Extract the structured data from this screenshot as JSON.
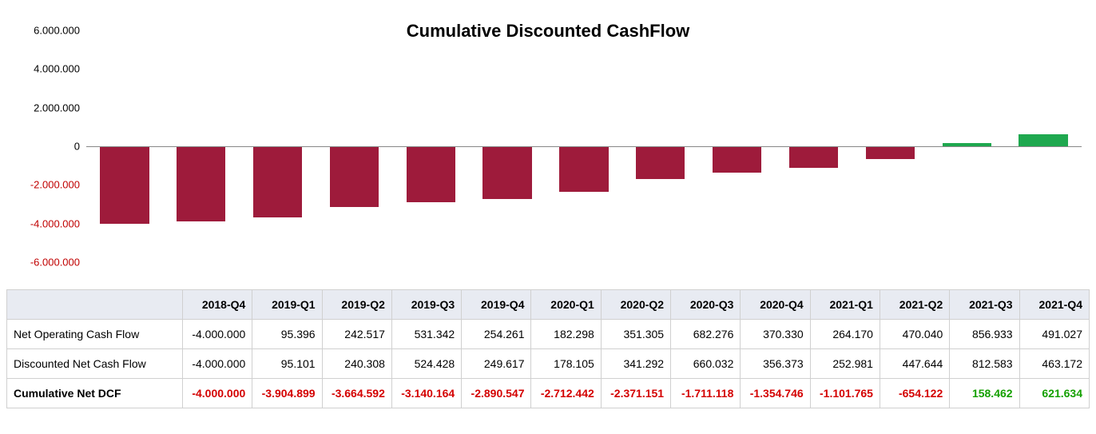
{
  "chart": {
    "type": "bar",
    "title": "Cumulative Discounted CashFlow",
    "title_fontsize": 22,
    "title_weight": "900",
    "background_color": "#ffffff",
    "y_axis": {
      "min": -6000000,
      "max": 6000000,
      "step": 2000000,
      "tick_labels": [
        "6.000.000",
        "4.000.000",
        "2.000.000",
        "0",
        "-2.000.000",
        "-4.000.000",
        "-6.000.000"
      ],
      "tick_fontsize": 13,
      "zero_line_color": "#888888",
      "positive_label_color": "#000000",
      "negative_label_color": "#c00000"
    },
    "categories": [
      "2018-Q4",
      "2019-Q1",
      "2019-Q2",
      "2019-Q3",
      "2019-Q4",
      "2020-Q1",
      "2020-Q2",
      "2020-Q3",
      "2020-Q4",
      "2021-Q1",
      "2021-Q2",
      "2021-Q3",
      "2021-Q4"
    ],
    "values": [
      -4000000,
      -3904899,
      -3664592,
      -3140164,
      -2890547,
      -2712442,
      -2371151,
      -1711118,
      -1354746,
      -1101765,
      -654122,
      158462,
      621634
    ],
    "negative_color": "#9e1b3b",
    "positive_color": "#1fa84f",
    "bar_width_pct": 64
  },
  "table": {
    "header_bg": "#e8ebf2",
    "border_color": "#d0d0d0",
    "columns": [
      "2018-Q4",
      "2019-Q1",
      "2019-Q2",
      "2019-Q3",
      "2019-Q4",
      "2020-Q1",
      "2020-Q2",
      "2020-Q3",
      "2020-Q4",
      "2021-Q1",
      "2021-Q2",
      "2021-Q3",
      "2021-Q4"
    ],
    "rows": [
      {
        "label": "Net Operating Cash Flow",
        "bold": false,
        "colorize": false,
        "cells": [
          "-4.000.000",
          "95.396",
          "242.517",
          "531.342",
          "254.261",
          "182.298",
          "351.305",
          "682.276",
          "370.330",
          "264.170",
          "470.040",
          "856.933",
          "491.027"
        ]
      },
      {
        "label": "Discounted Net Cash Flow",
        "bold": false,
        "colorize": false,
        "cells": [
          "-4.000.000",
          "95.101",
          "240.308",
          "524.428",
          "249.617",
          "178.105",
          "341.292",
          "660.032",
          "356.373",
          "252.981",
          "447.644",
          "812.583",
          "463.172"
        ]
      },
      {
        "label": "Cumulative Net DCF",
        "bold": true,
        "colorize": true,
        "cells": [
          "-4.000.000",
          "-3.904.899",
          "-3.664.592",
          "-3.140.164",
          "-2.890.547",
          "-2.712.442",
          "-2.371.151",
          "-1.711.118",
          "-1.354.746",
          "-1.101.765",
          "-654.122",
          "158.462",
          "621.634"
        ]
      }
    ]
  }
}
